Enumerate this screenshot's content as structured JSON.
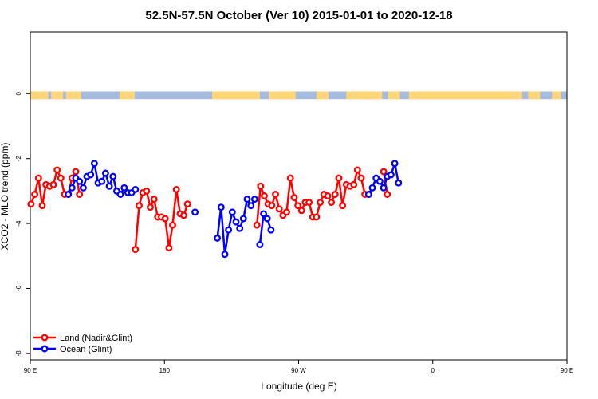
{
  "chart_data": {
    "type": "line",
    "title": "52.5N-57.5N October (Ver 10)   2015-01-01 to 2020-12-18",
    "xlabel": "Longitude (deg E)",
    "ylabel": "XCO2 - MLO trend (ppm)",
    "xlim": [
      90,
      450
    ],
    "ylim": [
      -8.2,
      1.9
    ],
    "x_ticks": [
      {
        "value": 90,
        "label": "90 E"
      },
      {
        "value": 180,
        "label": "180"
      },
      {
        "value": 270,
        "label": "90 W"
      },
      {
        "value": 360,
        "label": "0"
      },
      {
        "value": 450,
        "label": "90 E"
      },
      {
        "value": 540,
        "label": "180"
      }
    ],
    "y_ticks": [
      {
        "value": 0,
        "label": "0"
      },
      {
        "value": -2,
        "label": "-2"
      },
      {
        "value": -4,
        "label": "-4"
      },
      {
        "value": -6,
        "label": "-6"
      },
      {
        "value": -8,
        "label": "-8"
      }
    ],
    "grid": false,
    "legend_position": "bottom-left",
    "surface_strip": {
      "y_center": -0.05,
      "y_half_height": 0.12,
      "land_color": "#FFD77A",
      "ocean_color": "#A6BCDE"
    },
    "series": [
      {
        "name": "Land (Nadir&Glint)",
        "color": "#ff0000",
        "segments": [
          [
            [
              90.5,
              -3.4
            ],
            [
              93,
              -3.1
            ],
            [
              95.5,
              -2.6
            ],
            [
              98,
              -3.45
            ],
            [
              100.5,
              -2.8
            ],
            [
              103,
              -2.85
            ],
            [
              105.5,
              -2.8
            ],
            [
              108,
              -2.35
            ],
            [
              110.5,
              -2.6
            ],
            [
              113,
              -3.1
            ],
            [
              115.5,
              -3.1
            ],
            [
              118,
              -2.6
            ],
            [
              120.5,
              -2.4
            ],
            [
              123,
              -3.1
            ]
          ],
          [
            [
              160.5,
              -4.8
            ],
            [
              163,
              -3.45
            ],
            [
              165.5,
              -3.05
            ],
            [
              168,
              -3.0
            ],
            [
              170.5,
              -3.5
            ],
            [
              173,
              -3.25
            ],
            [
              175.5,
              -3.8
            ],
            [
              178,
              -3.8
            ],
            [
              180.5,
              -3.85
            ],
            [
              183,
              -4.75
            ],
            [
              185.5,
              -4.05
            ],
            [
              188,
              -2.95
            ],
            [
              190.5,
              -3.7
            ],
            [
              193,
              -3.75
            ],
            [
              195.5,
              -3.4
            ]
          ],
          [
            [
              242,
              -4.05
            ],
            [
              244.5,
              -2.85
            ],
            [
              247,
              -3.15
            ],
            [
              249.5,
              -3.4
            ],
            [
              252,
              -3.45
            ],
            [
              254.5,
              -3.1
            ],
            [
              257,
              -3.55
            ],
            [
              259.5,
              -3.75
            ],
            [
              262,
              -3.65
            ],
            [
              264.5,
              -2.6
            ],
            [
              267,
              -3.2
            ],
            [
              269.5,
              -3.45
            ],
            [
              272,
              -3.6
            ],
            [
              274.5,
              -3.35
            ],
            [
              277,
              -3.35
            ],
            [
              279.5,
              -3.8
            ],
            [
              282,
              -3.8
            ],
            [
              284.5,
              -3.35
            ],
            [
              287,
              -3.1
            ],
            [
              289.5,
              -3.15
            ],
            [
              292,
              -3.35
            ],
            [
              294.5,
              -3.1
            ],
            [
              297,
              -2.6
            ],
            [
              299.5,
              -3.45
            ],
            [
              302,
              -2.8
            ],
            [
              304.5,
              -2.85
            ],
            [
              307,
              -2.8
            ],
            [
              309.5,
              -2.35
            ],
            [
              312,
              -2.6
            ],
            [
              314.5,
              -3.1
            ],
            [
              317,
              -3.1
            ]
          ],
          [
            [
              327,
              -2.4
            ],
            [
              329.5,
              -3.1
            ]
          ]
        ]
      },
      {
        "name": "Ocean (Glint)",
        "color": "#0000ff",
        "segments": [
          [
            [
              115.5,
              -3.1
            ],
            [
              118,
              -2.9
            ],
            [
              120.5,
              -2.6
            ],
            [
              123,
              -2.7
            ],
            [
              125.5,
              -2.9
            ],
            [
              128,
              -2.55
            ],
            [
              130.5,
              -2.5
            ],
            [
              133,
              -2.15
            ],
            [
              135.5,
              -2.75
            ],
            [
              138,
              -2.7
            ],
            [
              140.5,
              -2.45
            ],
            [
              143,
              -2.85
            ],
            [
              145.5,
              -2.55
            ],
            [
              148,
              -3.0
            ],
            [
              150.5,
              -3.1
            ],
            [
              153,
              -2.9
            ],
            [
              155.5,
              -3.05
            ],
            [
              158,
              -3.05
            ],
            [
              160.5,
              -2.95
            ]
          ],
          [
            [
              200.5,
              -3.65
            ]
          ],
          [
            [
              215.5,
              -4.45
            ],
            [
              218,
              -3.5
            ],
            [
              220.5,
              -4.95
            ],
            [
              223,
              -4.2
            ],
            [
              225.5,
              -3.65
            ],
            [
              228,
              -3.95
            ],
            [
              230.5,
              -4.15
            ],
            [
              233,
              -3.85
            ],
            [
              235.5,
              -3.25
            ],
            [
              238,
              -3.45
            ],
            [
              240.5,
              -3.25
            ]
          ],
          [
            [
              244,
              -4.65
            ],
            [
              246.5,
              -3.7
            ],
            [
              249,
              -3.85
            ],
            [
              251.5,
              -4.2
            ]
          ],
          [
            [
              317,
              -3.1
            ],
            [
              319.5,
              -2.9
            ],
            [
              322,
              -2.6
            ],
            [
              324.5,
              -2.7
            ],
            [
              327,
              -2.9
            ],
            [
              329.5,
              -2.55
            ],
            [
              332,
              -2.5
            ],
            [
              334.5,
              -2.15
            ],
            [
              337,
              -2.75
            ]
          ]
        ]
      }
    ]
  }
}
